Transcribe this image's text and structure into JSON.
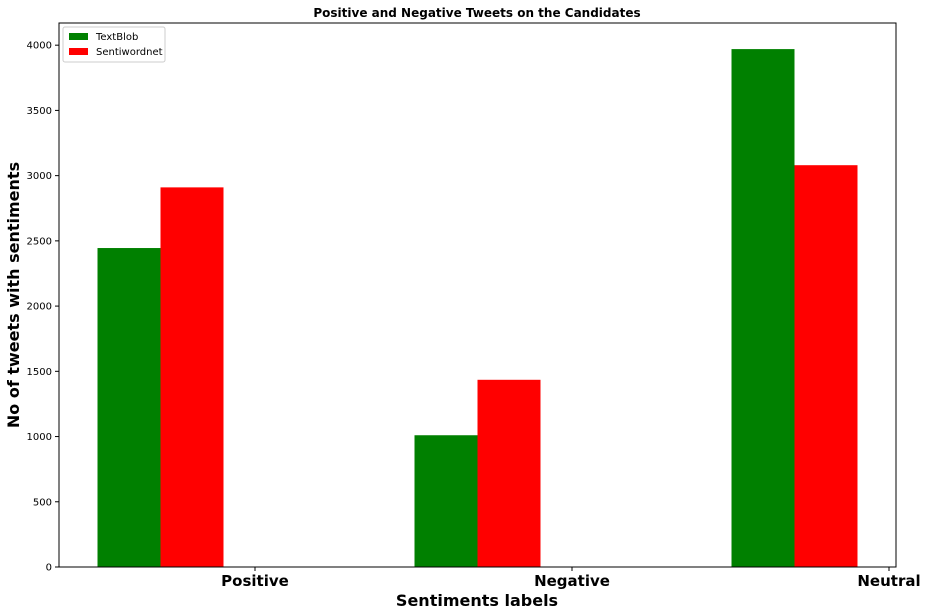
{
  "chart_data": {
    "type": "bar",
    "title": "Positive and Negative Tweets on the Candidates",
    "xlabel": "Sentiments labels",
    "ylabel": "No of tweets with sentiments",
    "categories": [
      "Positive",
      "Negative",
      "Neutral"
    ],
    "series": [
      {
        "name": "TextBlob",
        "values": [
          2445,
          1010,
          3970
        ],
        "color": "#008000"
      },
      {
        "name": "Sentiwordnet",
        "values": [
          2910,
          1435,
          3080
        ],
        "color": "#ff0000"
      }
    ],
    "ylim": [
      0,
      4170
    ],
    "yticks": [
      0,
      500,
      1000,
      1500,
      2000,
      2500,
      3000,
      3500,
      4000
    ],
    "grid": false,
    "legend_position": "top-left"
  }
}
